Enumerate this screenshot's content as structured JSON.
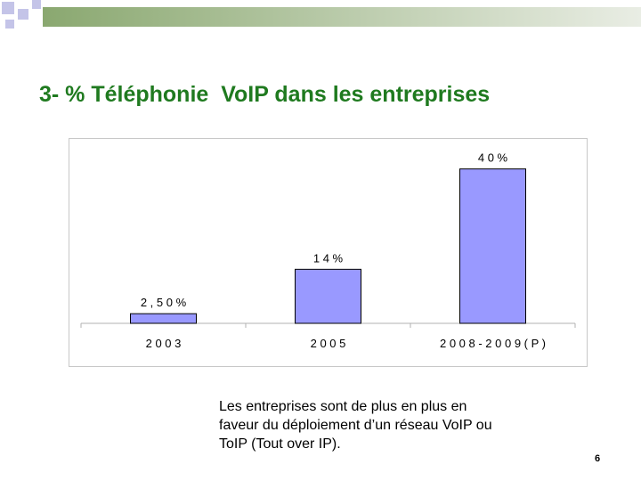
{
  "slide": {
    "title": "3- % Téléphonie  VoIP dans les entreprises",
    "caption": "Les entreprises sont de plus en plus en faveur du déploiement d’un réseau VoIP ou ToIP (Tout over IP).",
    "page_number": "6"
  },
  "colors": {
    "title": "#1f7a1f",
    "bar_fill": "#9999ff",
    "bar_stroke": "#000000",
    "band_dark": "#8aa870",
    "band_light": "#e9ede4",
    "squares": "#c4c4e8"
  },
  "chart_data": {
    "type": "bar",
    "title": "",
    "xlabel": "",
    "ylabel": "",
    "categories": [
      "2 0 0 3",
      "2 0 0 5",
      "2 0 0 8 - 2 0 0 9 ( P )"
    ],
    "values": [
      2.5,
      14,
      40
    ],
    "data_labels": [
      "2 , 5 0 %",
      "1 4 %",
      "4 0 %"
    ],
    "ylim": [
      0,
      45
    ],
    "grid": false,
    "legend": "none"
  }
}
